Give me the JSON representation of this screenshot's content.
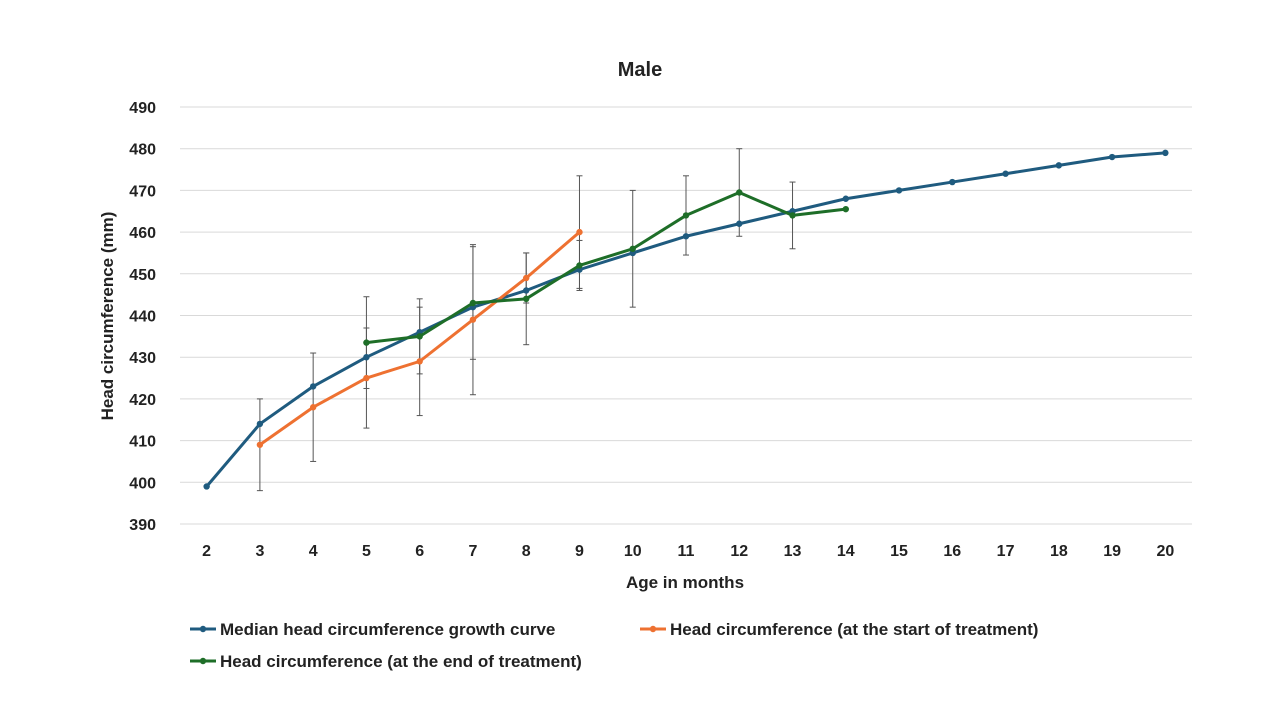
{
  "chart_data": {
    "type": "line",
    "title": "Male",
    "xlabel": "Age in months",
    "ylabel": "Head circumference (mm)",
    "x_ticks": [
      2,
      3,
      4,
      5,
      6,
      7,
      8,
      9,
      10,
      11,
      12,
      13,
      14,
      15,
      16,
      17,
      18,
      19,
      20
    ],
    "ylim": [
      390,
      490
    ],
    "y_ticks": [
      390,
      400,
      410,
      420,
      430,
      440,
      450,
      460,
      470,
      480,
      490
    ],
    "grid": true,
    "legend_position": "bottom",
    "series": [
      {
        "name": "Median head circumference growth curve",
        "color": "#1f5b7f",
        "x": [
          2,
          3,
          4,
          5,
          6,
          7,
          8,
          9,
          10,
          11,
          12,
          13,
          14,
          15,
          16,
          17,
          18,
          19,
          20
        ],
        "y": [
          399,
          414,
          423,
          430,
          436,
          442,
          446,
          451,
          455,
          459,
          462,
          465,
          468,
          470,
          472,
          474,
          476,
          478,
          479
        ]
      },
      {
        "name": "Head circumference (at the start of treatment)",
        "color": "#ee7131",
        "x": [
          3,
          4,
          5,
          6,
          7,
          8,
          9
        ],
        "y": [
          409,
          418,
          425,
          429,
          439,
          449,
          460
        ],
        "error": [
          11,
          13,
          12,
          13,
          18,
          6,
          13.5
        ]
      },
      {
        "name": "Head circumference (at the end of treatment)",
        "color": "#1e6e28",
        "x": [
          5,
          6,
          7,
          8,
          9,
          10,
          11,
          12,
          13,
          14
        ],
        "y": [
          433.5,
          435,
          443,
          444,
          452,
          456,
          464,
          469.5,
          464,
          465.5
        ],
        "error": [
          11,
          9,
          13.5,
          11,
          6,
          14,
          9.5,
          10.5,
          8,
          null
        ]
      }
    ]
  }
}
